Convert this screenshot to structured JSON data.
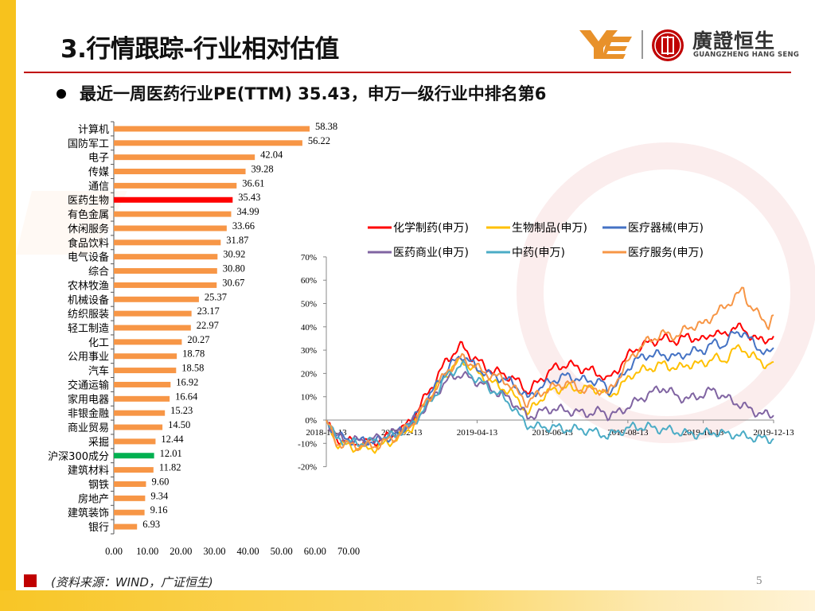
{
  "header": {
    "title": "3.行情跟踪-行业相对估值",
    "logo_cn": "廣證恒生",
    "logo_en": "GUANGZHENG HANG SENG"
  },
  "subtitle": "最近一周医药行业PE(TTM) 35.43，申万一级行业中排名第6",
  "footer": {
    "source": "(资料来源：WIND，广证恒生)",
    "page_number": "5"
  },
  "colors": {
    "bar_default": "#f79646",
    "bar_highlight_pharma": "#ff0000",
    "bar_highlight_index": "#00b050",
    "accent_red": "#c00000",
    "accent_yellow": "#f7c21d"
  },
  "chart_data": [
    {
      "type": "bar",
      "orientation": "horizontal",
      "title": "",
      "categories": [
        "计算机",
        "国防军工",
        "电子",
        "传媒",
        "通信",
        "医药生物",
        "有色金属",
        "休闲服务",
        "食品饮料",
        "电气设备",
        "综合",
        "农林牧渔",
        "机械设备",
        "纺织服装",
        "轻工制造",
        "化工",
        "公用事业",
        "汽车",
        "交通运输",
        "家用电器",
        "非银金融",
        "商业贸易",
        "采掘",
        "沪深300成分",
        "建筑材料",
        "钢铁",
        "房地产",
        "建筑装饰",
        "银行"
      ],
      "values": [
        58.38,
        56.22,
        42.04,
        39.28,
        36.61,
        35.43,
        34.99,
        33.66,
        31.87,
        30.92,
        30.8,
        30.67,
        25.37,
        23.17,
        22.97,
        20.27,
        18.78,
        18.58,
        16.92,
        16.64,
        15.23,
        14.5,
        12.44,
        12.01,
        11.82,
        9.6,
        9.34,
        9.16,
        6.93
      ],
      "value_labels": [
        "58.38",
        "56.22",
        "42.04",
        "39.28",
        "36.61",
        "35.43",
        "34.99",
        "33.66",
        "31.87",
        "30.92",
        "30.80",
        "30.67",
        "25.37",
        "23.17",
        "22.97",
        "20.27",
        "18.78",
        "18.58",
        "16.92",
        "16.64",
        "15.23",
        "14.50",
        "12.44",
        "12.01",
        "11.82",
        "9.60",
        "9.34",
        "9.16",
        "6.93"
      ],
      "highlight": {
        "医药生物": "#ff0000",
        "沪深300成分": "#00b050"
      },
      "xlim": [
        0,
        70
      ],
      "x_ticks": [
        "0.00",
        "10.00",
        "20.00",
        "30.00",
        "40.00",
        "50.00",
        "60.00",
        "70.00"
      ],
      "grid": false
    },
    {
      "type": "line",
      "title": "",
      "x_ticks": [
        "2018-12-13",
        "2019-02-13",
        "2019-04-13",
        "2019-06-13",
        "2019-08-13",
        "2019-10-13",
        "2019-12-13"
      ],
      "ylim": [
        -20,
        70
      ],
      "y_ticks": [
        "70%",
        "60%",
        "50%",
        "40%",
        "30%",
        "20%",
        "10%",
        "0%",
        "-10%",
        "-20%"
      ],
      "legend": "top",
      "series": [
        {
          "name": "化学制药(申万)",
          "color": "#ff0000",
          "anchors": [
            [
              0,
              0
            ],
            [
              2,
              -8
            ],
            [
              6,
              -10
            ],
            [
              10,
              -9
            ],
            [
              14,
              -6
            ],
            [
              17,
              0
            ],
            [
              20,
              11
            ],
            [
              22,
              18
            ],
            [
              24,
              26
            ],
            [
              27,
              32
            ],
            [
              29,
              27
            ],
            [
              31,
              24
            ],
            [
              33,
              21
            ],
            [
              35,
              20
            ],
            [
              37,
              18
            ],
            [
              39,
              15
            ],
            [
              40,
              12
            ],
            [
              42,
              16
            ],
            [
              45,
              22
            ],
            [
              48,
              24
            ],
            [
              51,
              22
            ],
            [
              53,
              21
            ],
            [
              55,
              19
            ],
            [
              56,
              17
            ],
            [
              58,
              22
            ],
            [
              61,
              30
            ],
            [
              64,
              33
            ],
            [
              67,
              35
            ],
            [
              70,
              34
            ],
            [
              72,
              36
            ],
            [
              75,
              34
            ],
            [
              77,
              38
            ],
            [
              79,
              36
            ],
            [
              81,
              40
            ],
            [
              83,
              39
            ],
            [
              84,
              37
            ],
            [
              86,
              34
            ],
            [
              88,
              35
            ],
            [
              89,
              36
            ]
          ]
        },
        {
          "name": "生物制品(申万)",
          "color": "#ffc000",
          "anchors": [
            [
              0,
              0
            ],
            [
              2,
              -10
            ],
            [
              6,
              -12
            ],
            [
              10,
              -12
            ],
            [
              14,
              -8
            ],
            [
              17,
              -3
            ],
            [
              20,
              8
            ],
            [
              22,
              14
            ],
            [
              24,
              20
            ],
            [
              27,
              26
            ],
            [
              29,
              22
            ],
            [
              31,
              19
            ],
            [
              33,
              16
            ],
            [
              35,
              14
            ],
            [
              37,
              11
            ],
            [
              39,
              7
            ],
            [
              40,
              2
            ],
            [
              42,
              8
            ],
            [
              45,
              13
            ],
            [
              48,
              14
            ],
            [
              51,
              13
            ],
            [
              53,
              14
            ],
            [
              55,
              12
            ],
            [
              56,
              10
            ],
            [
              58,
              13
            ],
            [
              61,
              20
            ],
            [
              64,
              22
            ],
            [
              67,
              24
            ],
            [
              70,
              22
            ],
            [
              72,
              24
            ],
            [
              75,
              24
            ],
            [
              77,
              27
            ],
            [
              79,
              25
            ],
            [
              81,
              30
            ],
            [
              83,
              31
            ],
            [
              84,
              28
            ],
            [
              86,
              26
            ],
            [
              88,
              23
            ],
            [
              89,
              25
            ]
          ]
        },
        {
          "name": "医疗器械(申万)",
          "color": "#4472c4",
          "anchors": [
            [
              0,
              0
            ],
            [
              2,
              -7
            ],
            [
              6,
              -9
            ],
            [
              10,
              -9
            ],
            [
              14,
              -6
            ],
            [
              17,
              -1
            ],
            [
              20,
              9
            ],
            [
              22,
              15
            ],
            [
              24,
              22
            ],
            [
              27,
              28
            ],
            [
              29,
              24
            ],
            [
              31,
              21
            ],
            [
              33,
              19
            ],
            [
              35,
              18
            ],
            [
              37,
              16
            ],
            [
              39,
              12
            ],
            [
              40,
              9
            ],
            [
              42,
              13
            ],
            [
              45,
              17
            ],
            [
              48,
              19
            ],
            [
              51,
              17
            ],
            [
              53,
              17
            ],
            [
              55,
              16
            ],
            [
              56,
              12
            ],
            [
              58,
              16
            ],
            [
              61,
              25
            ],
            [
              64,
              28
            ],
            [
              67,
              28
            ],
            [
              70,
              27
            ],
            [
              72,
              29
            ],
            [
              75,
              30
            ],
            [
              77,
              33
            ],
            [
              79,
              32
            ],
            [
              81,
              37
            ],
            [
              83,
              38
            ],
            [
              84,
              35
            ],
            [
              86,
              31
            ],
            [
              88,
              28
            ],
            [
              89,
              31
            ]
          ]
        },
        {
          "name": "医药商业(申万)",
          "color": "#8064a2",
          "anchors": [
            [
              0,
              0
            ],
            [
              2,
              -7
            ],
            [
              6,
              -9
            ],
            [
              10,
              -8
            ],
            [
              14,
              -5
            ],
            [
              17,
              -1
            ],
            [
              20,
              6
            ],
            [
              22,
              12
            ],
            [
              24,
              17
            ],
            [
              27,
              20
            ],
            [
              29,
              17
            ],
            [
              31,
              16
            ],
            [
              33,
              13
            ],
            [
              35,
              11
            ],
            [
              37,
              8
            ],
            [
              39,
              4
            ],
            [
              40,
              1
            ],
            [
              42,
              3
            ],
            [
              45,
              5
            ],
            [
              48,
              4
            ],
            [
              51,
              3
            ],
            [
              53,
              3
            ],
            [
              55,
              4
            ],
            [
              56,
              2
            ],
            [
              58,
              3
            ],
            [
              61,
              7
            ],
            [
              64,
              11
            ],
            [
              67,
              14
            ],
            [
              70,
              10
            ],
            [
              72,
              9
            ],
            [
              75,
              11
            ],
            [
              77,
              13
            ],
            [
              79,
              10
            ],
            [
              81,
              8
            ],
            [
              83,
              6
            ],
            [
              84,
              5
            ],
            [
              86,
              3
            ],
            [
              88,
              2
            ],
            [
              89,
              2
            ]
          ]
        },
        {
          "name": "中药(申万)",
          "color": "#4bacc6",
          "anchors": [
            [
              0,
              0
            ],
            [
              2,
              -8
            ],
            [
              6,
              -10
            ],
            [
              10,
              -9
            ],
            [
              14,
              -6
            ],
            [
              17,
              -2
            ],
            [
              20,
              6
            ],
            [
              22,
              12
            ],
            [
              24,
              19
            ],
            [
              27,
              24
            ],
            [
              29,
              19
            ],
            [
              31,
              16
            ],
            [
              33,
              13
            ],
            [
              35,
              10
            ],
            [
              37,
              6
            ],
            [
              39,
              0
            ],
            [
              40,
              -2
            ],
            [
              42,
              -3
            ],
            [
              45,
              -3
            ],
            [
              48,
              -4
            ],
            [
              51,
              -4
            ],
            [
              53,
              -5
            ],
            [
              55,
              -6
            ],
            [
              56,
              -7
            ],
            [
              58,
              -5
            ],
            [
              61,
              -3
            ],
            [
              64,
              -3
            ],
            [
              67,
              -4
            ],
            [
              70,
              -5
            ],
            [
              72,
              -6
            ],
            [
              75,
              -6
            ],
            [
              77,
              -5
            ],
            [
              79,
              -6
            ],
            [
              81,
              -6
            ],
            [
              83,
              -7
            ],
            [
              84,
              -7
            ],
            [
              86,
              -8
            ],
            [
              88,
              -8
            ],
            [
              89,
              -8
            ]
          ]
        },
        {
          "name": "医疗服务(申万)",
          "color": "#f79646",
          "anchors": [
            [
              0,
              0
            ],
            [
              2,
              -10
            ],
            [
              6,
              -11
            ],
            [
              10,
              -11
            ],
            [
              14,
              -7
            ],
            [
              17,
              -2
            ],
            [
              20,
              8
            ],
            [
              22,
              14
            ],
            [
              24,
              21
            ],
            [
              27,
              27
            ],
            [
              29,
              24
            ],
            [
              31,
              21
            ],
            [
              33,
              19
            ],
            [
              35,
              18
            ],
            [
              37,
              14
            ],
            [
              39,
              10
            ],
            [
              40,
              7
            ],
            [
              42,
              11
            ],
            [
              45,
              14
            ],
            [
              48,
              16
            ],
            [
              51,
              13
            ],
            [
              53,
              13
            ],
            [
              55,
              13
            ],
            [
              56,
              11
            ],
            [
              58,
              18
            ],
            [
              61,
              28
            ],
            [
              64,
              34
            ],
            [
              67,
              37
            ],
            [
              70,
              36
            ],
            [
              72,
              40
            ],
            [
              75,
              41
            ],
            [
              77,
              45
            ],
            [
              79,
              48
            ],
            [
              81,
              52
            ],
            [
              83,
              56
            ],
            [
              84,
              50
            ],
            [
              86,
              45
            ],
            [
              88,
              41
            ],
            [
              89,
              45
            ]
          ]
        }
      ]
    }
  ]
}
